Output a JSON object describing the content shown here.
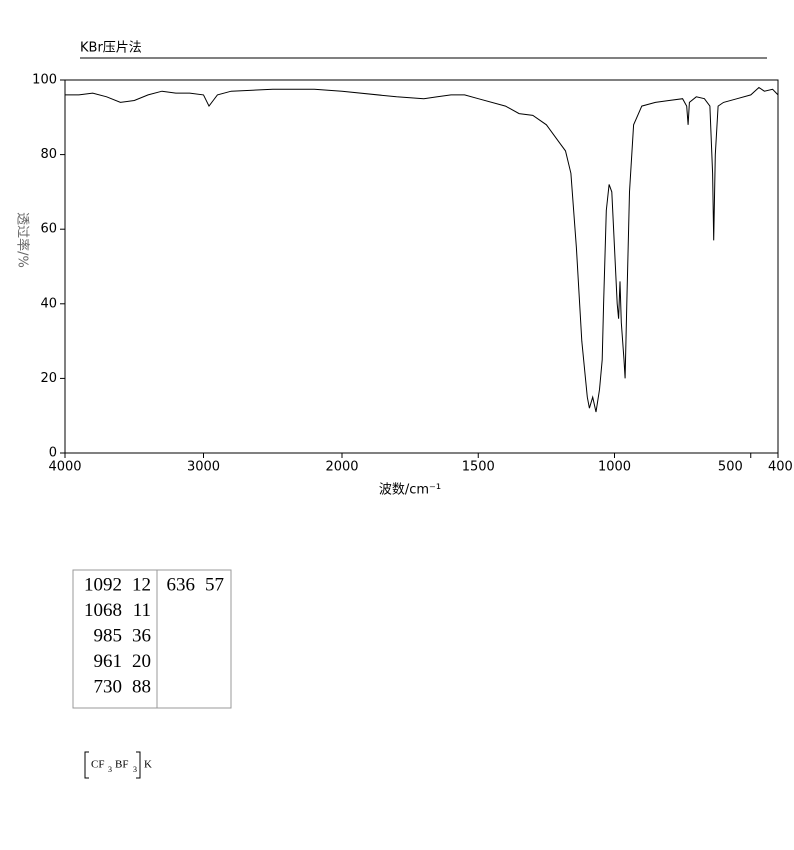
{
  "chart_data": {
    "type": "line",
    "title": "KBr压片法",
    "x_label": "波数/cm⁻¹",
    "y_label": "透过率/%",
    "xlim": [
      4000,
      400
    ],
    "x_scale_break": 2000,
    "xticks": [
      4000,
      3000,
      2000,
      1500,
      1000,
      500,
      400
    ],
    "ylim": [
      0,
      100
    ],
    "yticks": [
      0,
      20,
      40,
      60,
      80,
      100
    ],
    "color": "#000000",
    "x": [
      4000,
      3900,
      3800,
      3700,
      3600,
      3500,
      3400,
      3300,
      3200,
      3100,
      3000,
      2960,
      2930,
      2900,
      2800,
      2500,
      2200,
      2000,
      1800,
      1700,
      1650,
      1600,
      1550,
      1500,
      1400,
      1350,
      1300,
      1250,
      1200,
      1180,
      1160,
      1140,
      1120,
      1100,
      1092,
      1080,
      1068,
      1055,
      1045,
      1040,
      1030,
      1020,
      1010,
      1000,
      990,
      985,
      980,
      975,
      965,
      961,
      955,
      945,
      930,
      900,
      850,
      800,
      750,
      735,
      730,
      725,
      700,
      670,
      650,
      640,
      636,
      630,
      620,
      600,
      550,
      500,
      470,
      450,
      420,
      400
    ],
    "values": [
      96,
      96,
      96.5,
      95.5,
      94,
      94.5,
      96,
      97,
      96.5,
      96.5,
      96,
      93,
      94.5,
      96,
      97,
      97.5,
      97.5,
      97,
      95.5,
      95,
      95.5,
      96,
      96,
      95,
      93,
      91,
      90.5,
      88,
      83,
      81,
      75,
      55,
      30,
      15,
      12,
      15,
      11,
      17,
      25,
      40,
      65,
      72,
      70,
      55,
      40,
      36,
      46,
      35,
      25,
      20,
      40,
      70,
      88,
      93,
      94,
      94.5,
      95,
      93,
      88,
      94,
      95.5,
      95,
      93,
      75,
      57,
      80,
      93,
      94,
      95,
      96,
      98,
      97,
      97.5,
      96
    ]
  },
  "peak_table": {
    "columns": [
      [
        [
          1092,
          12
        ],
        [
          1068,
          11
        ],
        [
          985,
          36
        ],
        [
          961,
          20
        ],
        [
          730,
          88
        ]
      ],
      [
        [
          636,
          57
        ]
      ]
    ]
  },
  "formula": [
    "CF",
    "3",
    "BF",
    "3",
    "K"
  ]
}
